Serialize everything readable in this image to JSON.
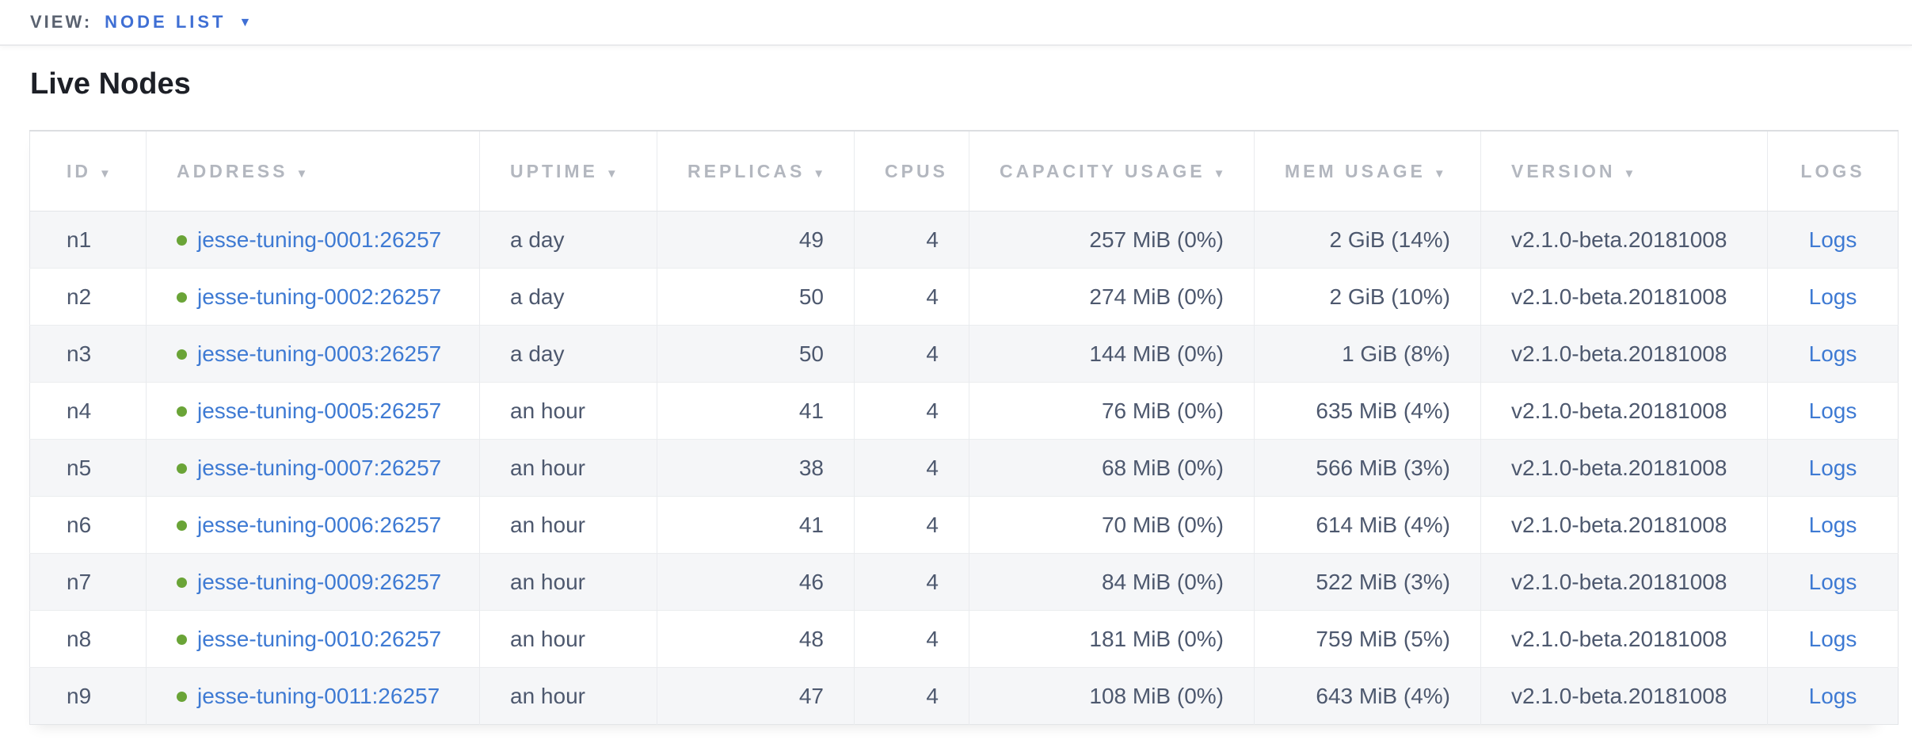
{
  "view_bar": {
    "label": "VIEW:",
    "selected": "NODE LIST",
    "dropdown_icon": "▼"
  },
  "page": {
    "title": "Live Nodes"
  },
  "colors": {
    "accent_blue": "#3f6fd4",
    "link_blue": "#3e7ad3",
    "healthy_green": "#6aa437",
    "header_text": "#b3b7bf",
    "body_text": "#4d586e",
    "row_stripe": "#f5f6f8"
  },
  "table": {
    "columns": [
      {
        "key": "id",
        "label": "ID",
        "sortable": true,
        "cell_align": "left"
      },
      {
        "key": "address",
        "label": "ADDRESS",
        "sortable": true,
        "cell_align": "left"
      },
      {
        "key": "uptime",
        "label": "UPTIME",
        "sortable": true,
        "cell_align": "left"
      },
      {
        "key": "replicas",
        "label": "REPLICAS",
        "sortable": true,
        "cell_align": "right"
      },
      {
        "key": "cpus",
        "label": "CPUS",
        "sortable": false,
        "cell_align": "right"
      },
      {
        "key": "capacity",
        "label": "CAPACITY USAGE",
        "sortable": true,
        "cell_align": "right"
      },
      {
        "key": "mem",
        "label": "MEM USAGE",
        "sortable": true,
        "cell_align": "right"
      },
      {
        "key": "version",
        "label": "VERSION",
        "sortable": true,
        "cell_align": "left"
      },
      {
        "key": "logs",
        "label": "LOGS",
        "sortable": false,
        "cell_align": "center"
      }
    ],
    "sort_icon": "▼",
    "rows": [
      {
        "id": "n1",
        "status": "healthy",
        "address": "jesse-tuning-0001:26257",
        "uptime": "a day",
        "replicas": "49",
        "cpus": "4",
        "capacity": "257 MiB (0%)",
        "mem": "2 GiB (14%)",
        "version": "v2.1.0-beta.20181008",
        "logs": "Logs"
      },
      {
        "id": "n2",
        "status": "healthy",
        "address": "jesse-tuning-0002:26257",
        "uptime": "a day",
        "replicas": "50",
        "cpus": "4",
        "capacity": "274 MiB (0%)",
        "mem": "2 GiB (10%)",
        "version": "v2.1.0-beta.20181008",
        "logs": "Logs"
      },
      {
        "id": "n3",
        "status": "healthy",
        "address": "jesse-tuning-0003:26257",
        "uptime": "a day",
        "replicas": "50",
        "cpus": "4",
        "capacity": "144 MiB (0%)",
        "mem": "1 GiB (8%)",
        "version": "v2.1.0-beta.20181008",
        "logs": "Logs"
      },
      {
        "id": "n4",
        "status": "healthy",
        "address": "jesse-tuning-0005:26257",
        "uptime": "an hour",
        "replicas": "41",
        "cpus": "4",
        "capacity": "76 MiB (0%)",
        "mem": "635 MiB (4%)",
        "version": "v2.1.0-beta.20181008",
        "logs": "Logs"
      },
      {
        "id": "n5",
        "status": "healthy",
        "address": "jesse-tuning-0007:26257",
        "uptime": "an hour",
        "replicas": "38",
        "cpus": "4",
        "capacity": "68 MiB (0%)",
        "mem": "566 MiB (3%)",
        "version": "v2.1.0-beta.20181008",
        "logs": "Logs"
      },
      {
        "id": "n6",
        "status": "healthy",
        "address": "jesse-tuning-0006:26257",
        "uptime": "an hour",
        "replicas": "41",
        "cpus": "4",
        "capacity": "70 MiB (0%)",
        "mem": "614 MiB (4%)",
        "version": "v2.1.0-beta.20181008",
        "logs": "Logs"
      },
      {
        "id": "n7",
        "status": "healthy",
        "address": "jesse-tuning-0009:26257",
        "uptime": "an hour",
        "replicas": "46",
        "cpus": "4",
        "capacity": "84 MiB (0%)",
        "mem": "522 MiB (3%)",
        "version": "v2.1.0-beta.20181008",
        "logs": "Logs"
      },
      {
        "id": "n8",
        "status": "healthy",
        "address": "jesse-tuning-0010:26257",
        "uptime": "an hour",
        "replicas": "48",
        "cpus": "4",
        "capacity": "181 MiB (0%)",
        "mem": "759 MiB (5%)",
        "version": "v2.1.0-beta.20181008",
        "logs": "Logs"
      },
      {
        "id": "n9",
        "status": "healthy",
        "address": "jesse-tuning-0011:26257",
        "uptime": "an hour",
        "replicas": "47",
        "cpus": "4",
        "capacity": "108 MiB (0%)",
        "mem": "643 MiB (4%)",
        "version": "v2.1.0-beta.20181008",
        "logs": "Logs"
      }
    ]
  }
}
